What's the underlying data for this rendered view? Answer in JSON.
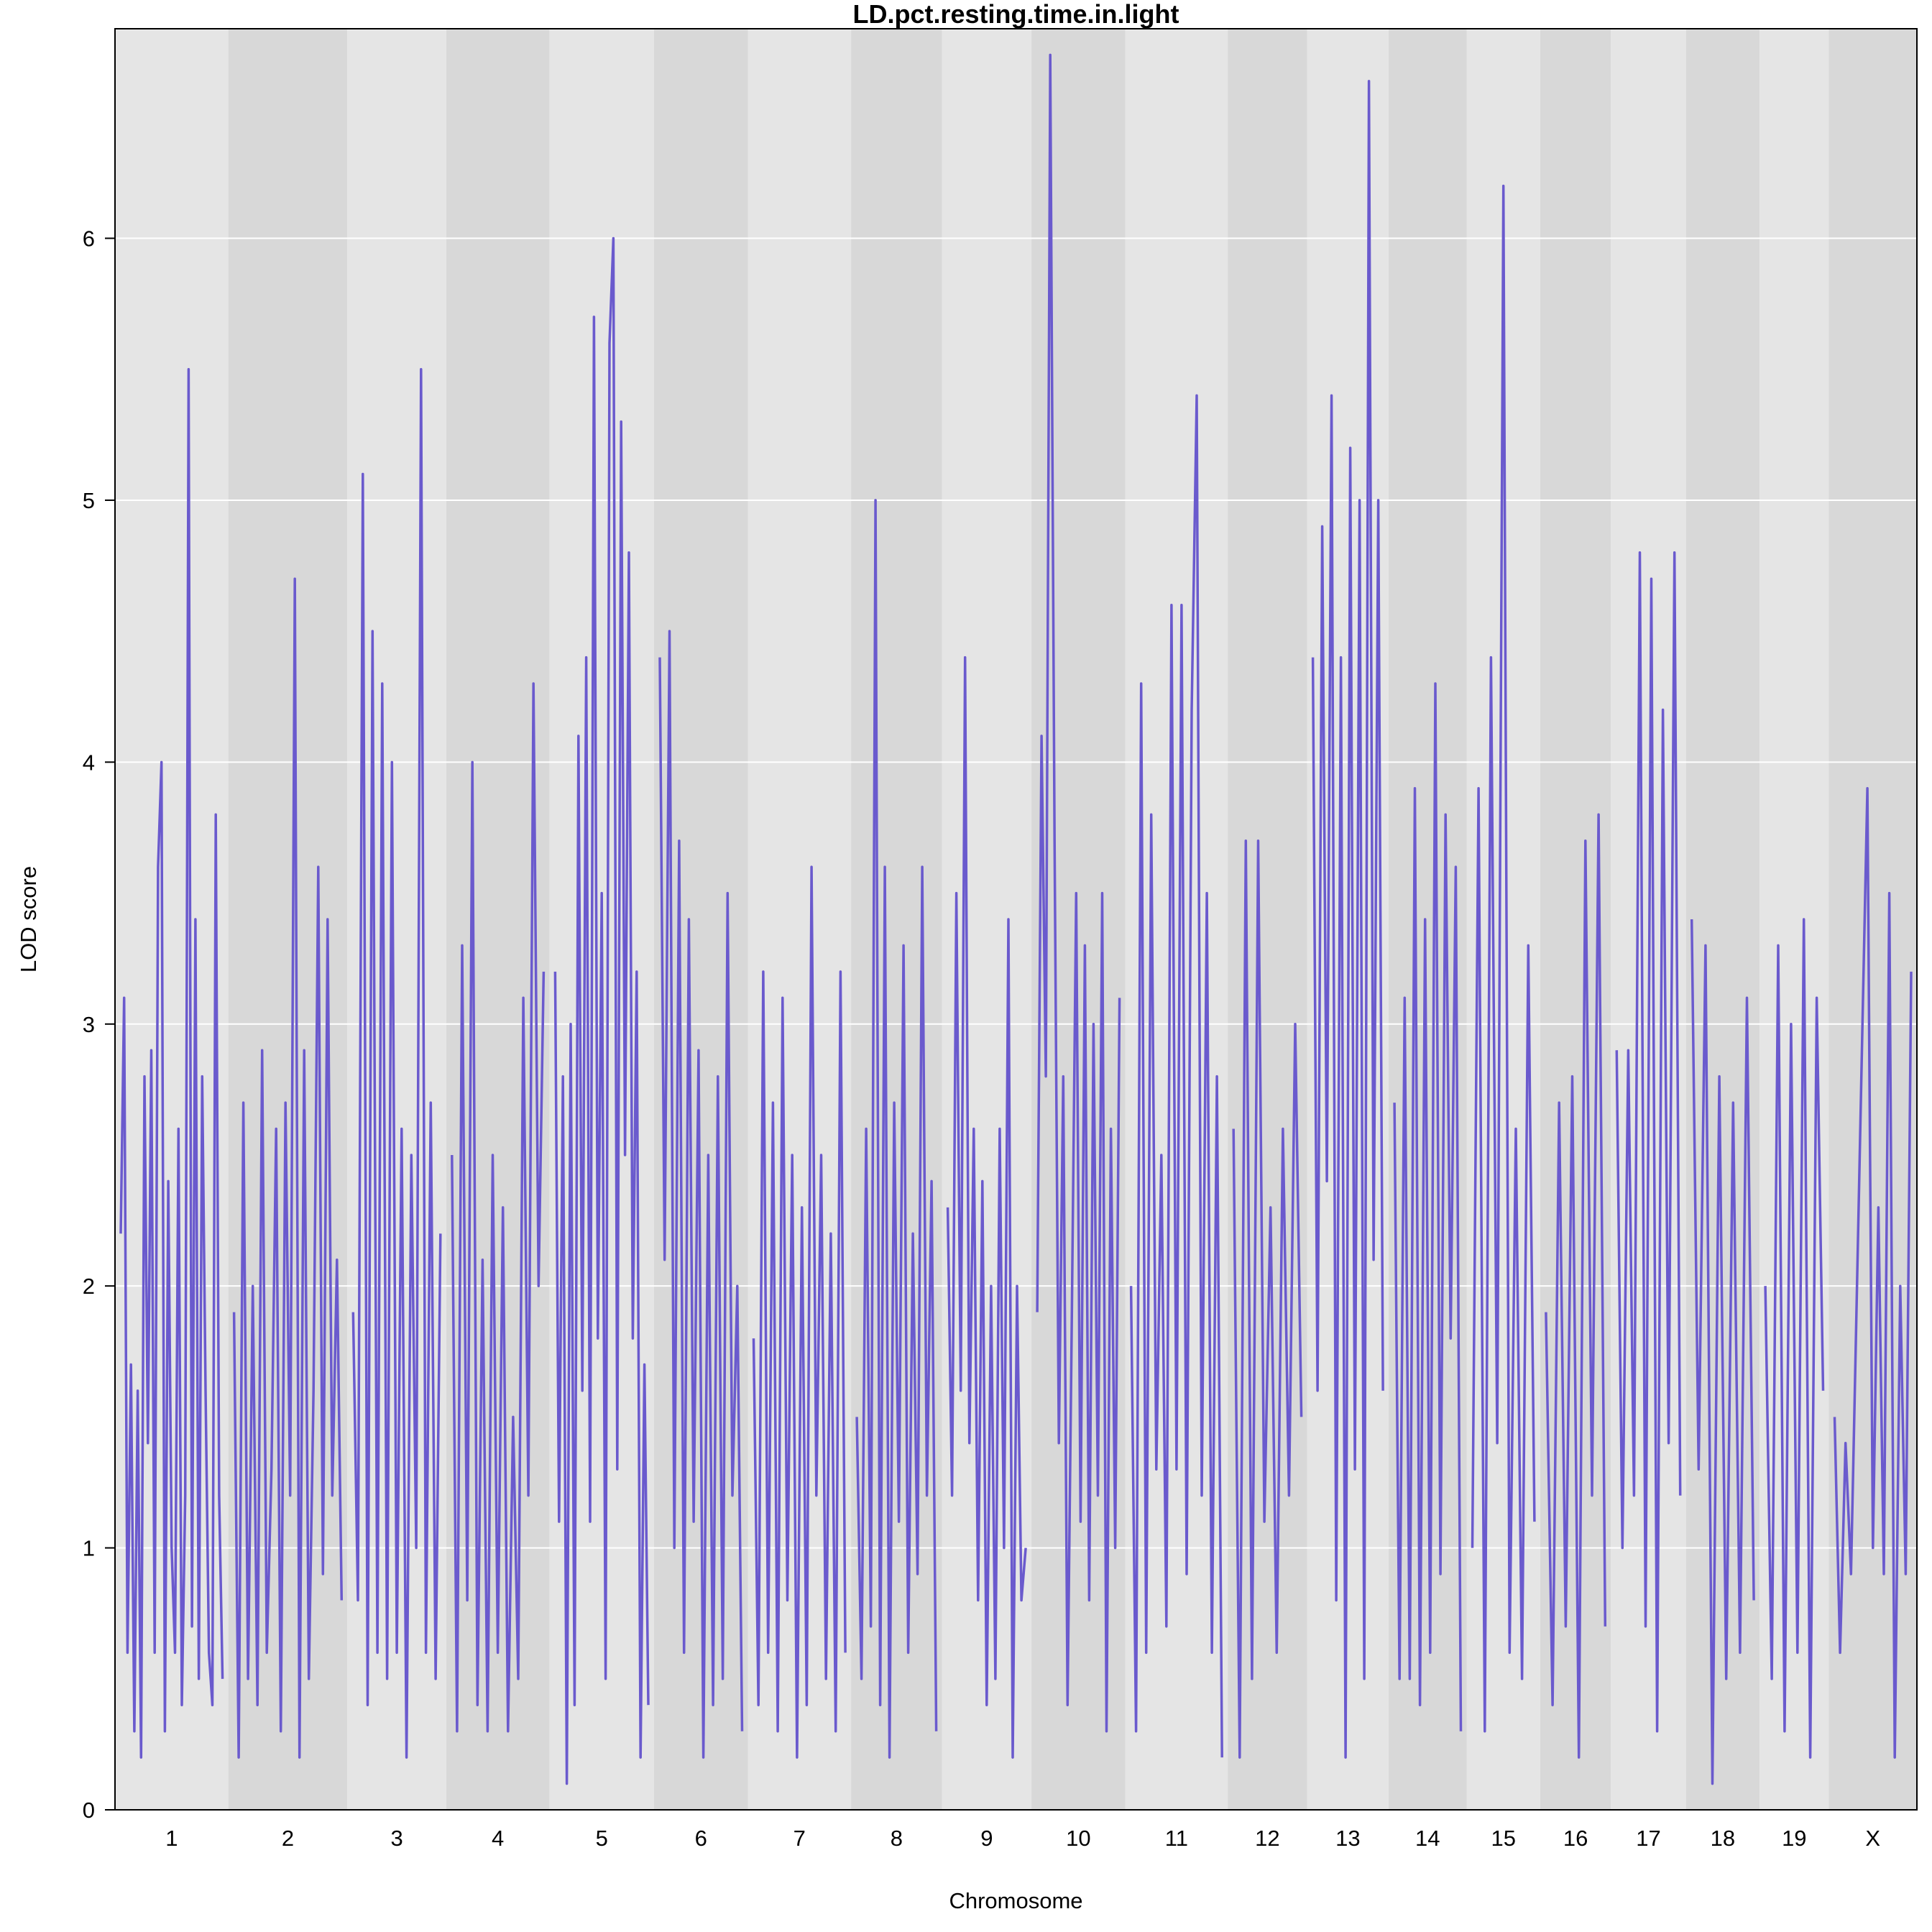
{
  "chart_data": {
    "type": "line",
    "title": "LD.pct.resting.time.in.light",
    "xlabel": "Chromosome",
    "ylabel": "LOD score",
    "ylim": [
      0,
      6.8
    ],
    "yticks": [
      0,
      1,
      2,
      3,
      4,
      5,
      6
    ],
    "grid": true,
    "line_color": "#6a5acd",
    "band_colors": [
      "#e5e5e5",
      "#d8d8d8"
    ],
    "series": [
      {
        "values_by_chromosome": [
          {
            "chromosome": "1",
            "values": [
              2.2,
              3.1,
              0.6,
              1.7,
              0.3,
              1.6,
              0.2,
              2.8,
              1.4,
              2.9,
              0.6,
              3.6,
              4.0,
              0.3,
              2.4,
              1.0,
              0.6,
              2.6,
              0.4,
              1.2,
              5.5,
              0.7,
              3.4,
              0.5,
              2.8,
              1.6,
              0.6,
              0.4,
              3.8,
              1.2,
              0.5
            ]
          },
          {
            "chromosome": "2",
            "values": [
              1.9,
              0.2,
              2.7,
              0.5,
              2.0,
              0.4,
              2.9,
              0.6,
              1.3,
              2.6,
              0.3,
              2.7,
              1.2,
              4.7,
              0.2,
              2.9,
              0.5,
              1.6,
              3.6,
              0.9,
              3.4,
              1.2,
              2.1,
              0.8
            ]
          },
          {
            "chromosome": "3",
            "values": [
              1.9,
              0.8,
              5.1,
              0.4,
              4.5,
              0.6,
              4.3,
              0.5,
              4.0,
              0.6,
              2.6,
              0.2,
              2.5,
              1.0,
              5.5,
              0.6,
              2.7,
              0.5,
              2.2
            ]
          },
          {
            "chromosome": "4",
            "values": [
              2.5,
              0.3,
              3.3,
              0.8,
              4.0,
              0.4,
              2.1,
              0.3,
              2.5,
              0.6,
              2.3,
              0.3,
              1.5,
              0.5,
              3.1,
              1.2,
              4.3,
              2.0,
              3.2
            ]
          },
          {
            "chromosome": "5",
            "values": [
              3.2,
              1.1,
              2.8,
              0.1,
              3.0,
              0.4,
              4.1,
              1.6,
              4.4,
              1.1,
              5.7,
              1.8,
              3.5,
              0.5,
              5.6,
              6.0,
              1.3,
              5.3,
              2.5,
              4.8,
              1.8,
              3.2,
              0.2,
              1.7,
              0.4
            ]
          },
          {
            "chromosome": "6",
            "values": [
              4.4,
              2.1,
              4.5,
              1.0,
              3.7,
              0.6,
              3.4,
              1.1,
              2.9,
              0.2,
              2.5,
              0.4,
              2.8,
              0.5,
              3.5,
              1.2,
              2.0,
              0.3
            ]
          },
          {
            "chromosome": "7",
            "values": [
              1.8,
              0.4,
              3.2,
              0.6,
              2.7,
              0.3,
              3.1,
              0.8,
              2.5,
              0.2,
              2.3,
              0.4,
              3.6,
              1.2,
              2.5,
              0.5,
              2.2,
              0.3,
              3.2,
              0.6
            ]
          },
          {
            "chromosome": "8",
            "values": [
              1.5,
              0.5,
              2.6,
              0.7,
              5.0,
              0.4,
              3.6,
              0.2,
              2.7,
              1.1,
              3.3,
              0.6,
              2.2,
              0.9,
              3.6,
              1.2,
              2.4,
              0.3
            ]
          },
          {
            "chromosome": "9",
            "values": [
              2.3,
              1.2,
              3.5,
              1.6,
              4.4,
              1.4,
              2.6,
              0.8,
              2.4,
              0.4,
              2.0,
              0.5,
              2.6,
              1.0,
              3.4,
              0.2,
              2.0,
              0.8,
              1.0
            ]
          },
          {
            "chromosome": "10",
            "values": [
              1.9,
              4.1,
              2.8,
              6.7,
              3.7,
              1.4,
              2.8,
              0.4,
              1.9,
              3.5,
              1.1,
              3.3,
              0.8,
              3.0,
              1.2,
              3.5,
              0.3,
              2.6,
              1.0,
              3.1
            ]
          },
          {
            "chromosome": "11",
            "values": [
              2.0,
              0.3,
              4.3,
              0.6,
              3.8,
              1.3,
              2.5,
              0.7,
              4.6,
              1.3,
              4.6,
              0.9,
              4.2,
              5.4,
              1.2,
              3.5,
              0.6,
              2.8,
              0.2
            ]
          },
          {
            "chromosome": "12",
            "values": [
              2.6,
              0.2,
              3.7,
              0.5,
              3.7,
              1.1,
              2.3,
              0.6,
              2.6,
              1.2,
              3.0,
              1.5
            ]
          },
          {
            "chromosome": "13",
            "values": [
              4.4,
              1.6,
              4.9,
              2.4,
              5.4,
              0.8,
              4.4,
              0.2,
              5.2,
              1.3,
              5.0,
              0.5,
              6.6,
              2.1,
              5.0,
              1.6
            ]
          },
          {
            "chromosome": "14",
            "values": [
              2.7,
              0.5,
              3.1,
              0.5,
              3.9,
              0.4,
              3.4,
              0.6,
              4.3,
              0.9,
              3.8,
              1.8,
              3.6,
              0.3
            ]
          },
          {
            "chromosome": "15",
            "values": [
              1.0,
              3.9,
              0.3,
              4.4,
              1.4,
              6.2,
              0.6,
              2.6,
              0.5,
              3.3,
              1.1
            ]
          },
          {
            "chromosome": "16",
            "values": [
              1.9,
              0.4,
              2.7,
              0.7,
              2.8,
              0.2,
              3.7,
              1.2,
              3.8,
              0.7
            ]
          },
          {
            "chromosome": "17",
            "values": [
              2.9,
              1.0,
              2.9,
              1.2,
              4.8,
              0.7,
              4.7,
              0.3,
              4.2,
              1.4,
              4.8,
              1.2
            ]
          },
          {
            "chromosome": "18",
            "values": [
              3.4,
              1.3,
              3.3,
              0.1,
              2.8,
              0.5,
              2.7,
              0.6,
              3.1,
              0.8
            ]
          },
          {
            "chromosome": "19",
            "values": [
              2.0,
              0.5,
              3.3,
              0.3,
              3.0,
              0.6,
              3.4,
              0.2,
              3.1,
              1.6
            ]
          },
          {
            "chromosome": "X",
            "values": [
              1.5,
              0.6,
              1.4,
              0.9,
              1.9,
              2.9,
              3.9,
              1.0,
              2.3,
              0.9,
              3.5,
              0.2,
              2.0,
              0.9,
              3.2
            ]
          }
        ]
      }
    ],
    "chromosomes": [
      "1",
      "2",
      "3",
      "4",
      "5",
      "6",
      "7",
      "8",
      "9",
      "10",
      "11",
      "12",
      "13",
      "14",
      "15",
      "16",
      "17",
      "18",
      "19",
      "X"
    ]
  }
}
